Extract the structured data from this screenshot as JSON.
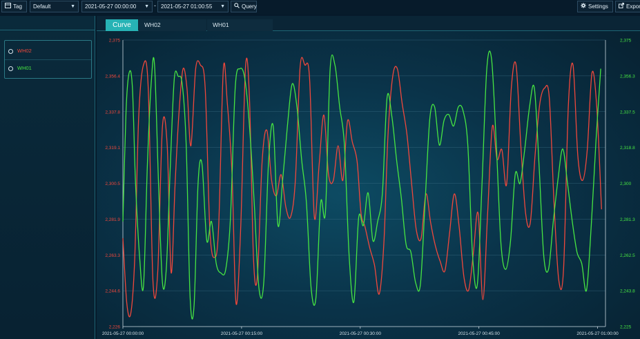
{
  "toolbar": {
    "tag_label": "Tag",
    "preset_value": "Default",
    "start_time": "2021-05-27 00:00:00",
    "dash": "-",
    "end_time": "2021-05-27 01:00:55",
    "query_label": "Query",
    "settings_label": "Settings",
    "export_label": "Export"
  },
  "tabs": [
    {
      "label": "Curve",
      "active": true
    },
    {
      "label": "WH02",
      "active": false
    },
    {
      "label": "WH01",
      "active": false
    }
  ],
  "legend": [
    {
      "name": "WH02",
      "color": "#f0483c"
    },
    {
      "name": "WH01",
      "color": "#47e642"
    }
  ],
  "colors": {
    "accent": "#27b3b5",
    "wh02": "#f0483c",
    "wh01": "#47e642",
    "grid": "#3d6f86"
  },
  "chart_data": {
    "type": "line",
    "x_tick_labels": [
      "2021-05-27 00:00:00",
      "2021-05-27 00:15:00",
      "2021-05-27 00:30:00",
      "2021-05-27 00:45:00",
      "2021-05-27 01:00:00"
    ],
    "xlim_minutes": [
      0,
      61
    ],
    "left_axis": {
      "series": "WH02",
      "color": "#f0483c",
      "ticks": [
        "2,375",
        "2,356.4",
        "2,337.8",
        "2,319.1",
        "2,300.5",
        "2,281.9",
        "2,263.3",
        "2,244.6",
        "2,226"
      ],
      "ylim": [
        2226,
        2375
      ]
    },
    "right_axis": {
      "series": "WH01",
      "color": "#47e642",
      "ticks": [
        "2,375",
        "2,356.3",
        "2,337.5",
        "2,318.8",
        "2,300",
        "2,281.3",
        "2,262.5",
        "2,243.8",
        "2,225"
      ],
      "ylim": [
        2225,
        2375
      ]
    },
    "grid": true,
    "series": [
      {
        "name": "WH02",
        "axis": "left",
        "x": [
          0.0,
          0.5,
          1.0,
          1.5,
          2.0,
          2.6,
          3.2,
          3.8,
          4.4,
          5.0,
          5.6,
          6.1,
          6.6,
          7.1,
          7.6,
          8.1,
          8.6,
          9.2,
          9.8,
          10.4,
          11.0,
          11.6,
          12.1,
          12.7,
          13.2,
          13.8,
          14.3,
          14.9,
          15.5,
          16.0,
          16.5,
          17.0,
          17.6,
          18.2,
          18.8,
          19.4,
          20.0,
          20.6,
          21.2,
          21.8,
          22.4,
          23.0,
          23.6,
          24.2,
          24.8,
          25.4,
          26.0,
          26.6,
          27.2,
          27.8,
          28.4,
          29.0,
          29.6,
          30.1,
          30.6,
          31.2,
          31.8,
          32.4,
          33.0,
          33.5,
          34.1,
          34.7,
          35.3,
          35.9,
          36.5,
          37.1,
          37.7,
          38.3,
          38.9,
          39.5,
          40.1,
          40.7,
          41.3,
          41.9,
          42.5,
          43.1,
          43.7,
          44.3,
          44.9,
          45.5,
          46.1,
          46.7,
          47.3,
          47.9,
          48.5,
          49.1,
          49.7,
          50.3,
          50.9,
          51.5,
          52.1,
          52.7,
          53.3,
          53.9,
          54.5,
          55.1,
          55.7,
          56.3,
          56.9,
          57.5,
          58.1,
          58.7,
          59.3,
          59.9,
          60.5
        ],
        "y": [
          2272,
          2238,
          2233,
          2262,
          2335,
          2362,
          2350,
          2250,
          2254,
          2330,
          2320,
          2254,
          2300,
          2338,
          2360,
          2350,
          2320,
          2360,
          2362,
          2350,
          2276,
          2262,
          2278,
          2360,
          2342,
          2305,
          2238,
          2278,
          2361,
          2345,
          2262,
          2252,
          2312,
          2328,
          2302,
          2294,
          2305,
          2288,
          2283,
          2302,
          2361,
          2362,
          2355,
          2283,
          2310,
          2336,
          2305,
          2302,
          2320,
          2302,
          2333,
          2322,
          2312,
          2285,
          2278,
          2267,
          2258,
          2243,
          2270,
          2325,
          2356,
          2360,
          2342,
          2326,
          2300,
          2276,
          2272,
          2295,
          2280,
          2268,
          2260,
          2255,
          2275,
          2295,
          2278,
          2252,
          2245,
          2264,
          2285,
          2240,
          2285,
          2330,
          2313,
          2318,
          2300,
          2350,
          2362,
          2320,
          2285,
          2280,
          2315,
          2342,
          2350,
          2345,
          2290,
          2250,
          2256,
          2340,
          2362,
          2315,
          2302,
          2318,
          2358,
          2340,
          2287
        ]
      },
      {
        "name": "WH01",
        "axis": "right",
        "x": [
          0.0,
          0.4,
          0.8,
          1.2,
          1.6,
          2.1,
          2.6,
          3.1,
          3.6,
          4.0,
          4.5,
          5.0,
          5.5,
          6.0,
          6.5,
          7.0,
          7.5,
          8.0,
          8.5,
          9.0,
          9.5,
          10.0,
          10.6,
          11.2,
          11.8,
          12.4,
          13.0,
          13.6,
          14.2,
          14.8,
          15.4,
          16.0,
          16.6,
          17.2,
          17.8,
          18.4,
          19.0,
          19.6,
          20.2,
          20.8,
          21.4,
          22.0,
          22.6,
          23.2,
          23.8,
          24.4,
          25.0,
          25.6,
          26.2,
          26.8,
          27.4,
          28.0,
          28.6,
          29.2,
          29.8,
          30.4,
          31.0,
          31.6,
          32.2,
          32.8,
          33.4,
          34.0,
          34.6,
          35.2,
          35.8,
          36.4,
          37.0,
          37.6,
          38.2,
          38.8,
          39.4,
          40.0,
          40.6,
          41.2,
          41.8,
          42.4,
          43.0,
          43.6,
          44.2,
          44.8,
          45.4,
          46.0,
          46.6,
          47.2,
          47.8,
          48.4,
          49.0,
          49.6,
          50.2,
          50.8,
          51.4,
          52.0,
          52.6,
          53.2,
          53.8,
          54.4,
          55.0,
          55.6,
          56.2,
          56.8,
          57.4,
          58.0,
          58.6,
          59.2,
          59.8,
          60.4
        ],
        "y": [
          2280,
          2338,
          2358,
          2350,
          2300,
          2262,
          2246,
          2310,
          2354,
          2362,
          2300,
          2248,
          2256,
          2310,
          2355,
          2356,
          2352,
          2320,
          2240,
          2236,
          2300,
          2310,
          2270,
          2280,
          2258,
          2253,
          2255,
          2282,
          2350,
          2360,
          2355,
          2330,
          2290,
          2245,
          2248,
          2310,
          2330,
          2278,
          2302,
          2330,
          2352,
          2340,
          2312,
          2290,
          2245,
          2240,
          2290,
          2285,
          2360,
          2362,
          2340,
          2320,
          2262,
          2238,
          2282,
          2278,
          2295,
          2270,
          2280,
          2295,
          2345,
          2335,
          2312,
          2292,
          2268,
          2264,
          2248,
          2247,
          2290,
          2334,
          2340,
          2320,
          2333,
          2336,
          2330,
          2340,
          2338,
          2320,
          2262,
          2247,
          2300,
          2360,
          2365,
          2320,
          2268,
          2255,
          2270,
          2305,
          2300,
          2318,
          2340,
          2350,
          2310,
          2262,
          2255,
          2280,
          2302,
          2318,
          2300,
          2280,
          2264,
          2258,
          2244,
          2278,
          2322,
          2360
        ]
      }
    ]
  }
}
